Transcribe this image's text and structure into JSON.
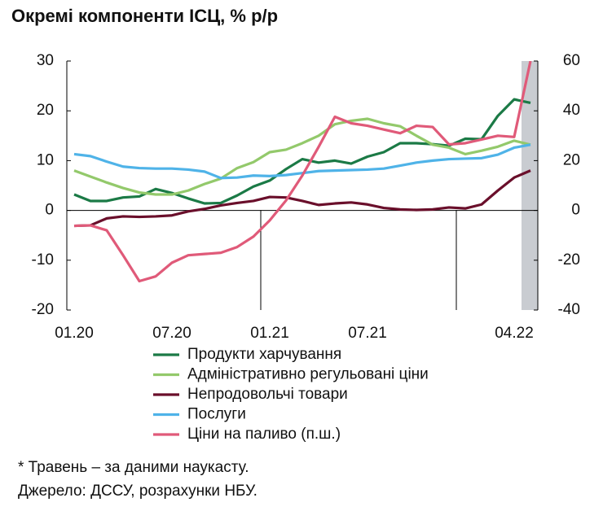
{
  "chart_data": {
    "type": "line",
    "title": "Окремі компоненти ІСЦ, % р/р",
    "categories": [
      "01.20",
      null,
      null,
      null,
      null,
      null,
      "07.20",
      null,
      null,
      null,
      null,
      null,
      "01.21",
      null,
      null,
      null,
      null,
      null,
      "07.21",
      null,
      null,
      null,
      null,
      null,
      null,
      null,
      null,
      "04.22",
      null
    ],
    "series": [
      {
        "name": "Продукти харчування",
        "color": "#1b7a46",
        "values": [
          3.2,
          1.9,
          1.9,
          2.6,
          2.8,
          4.3,
          3.5,
          2.4,
          1.4,
          1.5,
          3.0,
          4.8,
          6.0,
          8.3,
          10.3,
          9.6,
          10.0,
          9.4,
          10.8,
          11.7,
          13.5,
          13.5,
          13.3,
          13.0,
          14.4,
          14.3,
          19.0,
          22.3,
          21.6
        ]
      },
      {
        "name": "Адміністративно регульовані ціни",
        "color": "#93c96b",
        "values": [
          8.0,
          6.8,
          5.6,
          4.5,
          3.6,
          3.2,
          3.2,
          4.0,
          5.3,
          6.4,
          8.5,
          9.7,
          11.7,
          12.2,
          13.5,
          15.0,
          17.3,
          18.0,
          18.4,
          17.5,
          16.9,
          15.0,
          13.2,
          12.6,
          11.3,
          12.0,
          12.8,
          14.0,
          13.2
        ]
      },
      {
        "name": "Непродовольчі товари",
        "color": "#6a0f2b",
        "values": [
          -3.1,
          -3.0,
          -1.6,
          -1.2,
          -1.3,
          -1.2,
          -1.0,
          -0.2,
          0.3,
          1.0,
          1.5,
          1.9,
          2.7,
          2.6,
          1.9,
          1.1,
          1.4,
          1.6,
          1.2,
          0.5,
          0.2,
          0.1,
          0.2,
          0.6,
          0.4,
          1.2,
          4.0,
          6.6,
          8.0
        ]
      },
      {
        "name": "Послуги",
        "color": "#4fb3e8",
        "values": [
          11.3,
          10.9,
          9.8,
          8.8,
          8.5,
          8.4,
          8.4,
          8.2,
          7.8,
          6.5,
          6.6,
          7.0,
          6.9,
          7.1,
          7.5,
          7.9,
          8.0,
          8.1,
          8.2,
          8.4,
          9.0,
          9.6,
          10.0,
          10.3,
          10.4,
          10.5,
          11.2,
          12.6,
          13.2
        ]
      },
      {
        "name": "Ціни на паливо (п.ш.)",
        "color": "#e05a79",
        "axis": "y2",
        "values": [
          -6.2,
          -6.0,
          -8.0,
          -18.0,
          -28.4,
          -26.5,
          -21.0,
          -18.0,
          -17.5,
          -17.0,
          -14.7,
          -10.5,
          -4.0,
          4.0,
          14.0,
          25.5,
          37.6,
          35.0,
          34.0,
          32.5,
          31.0,
          34.0,
          33.5,
          26.5,
          27.0,
          28.5,
          30.0,
          29.5,
          60.0
        ]
      }
    ],
    "ylim": [
      -20,
      30
    ],
    "yticks": [
      -20,
      -10,
      0,
      10,
      20,
      30
    ],
    "y2lim": [
      -40,
      60
    ],
    "y2ticks": [
      -40,
      -20,
      0,
      20,
      40,
      60
    ],
    "notes": [
      "* Травень – за даними наукасту.",
      "Джерело: ДССУ, розрахунки НБУ."
    ]
  }
}
